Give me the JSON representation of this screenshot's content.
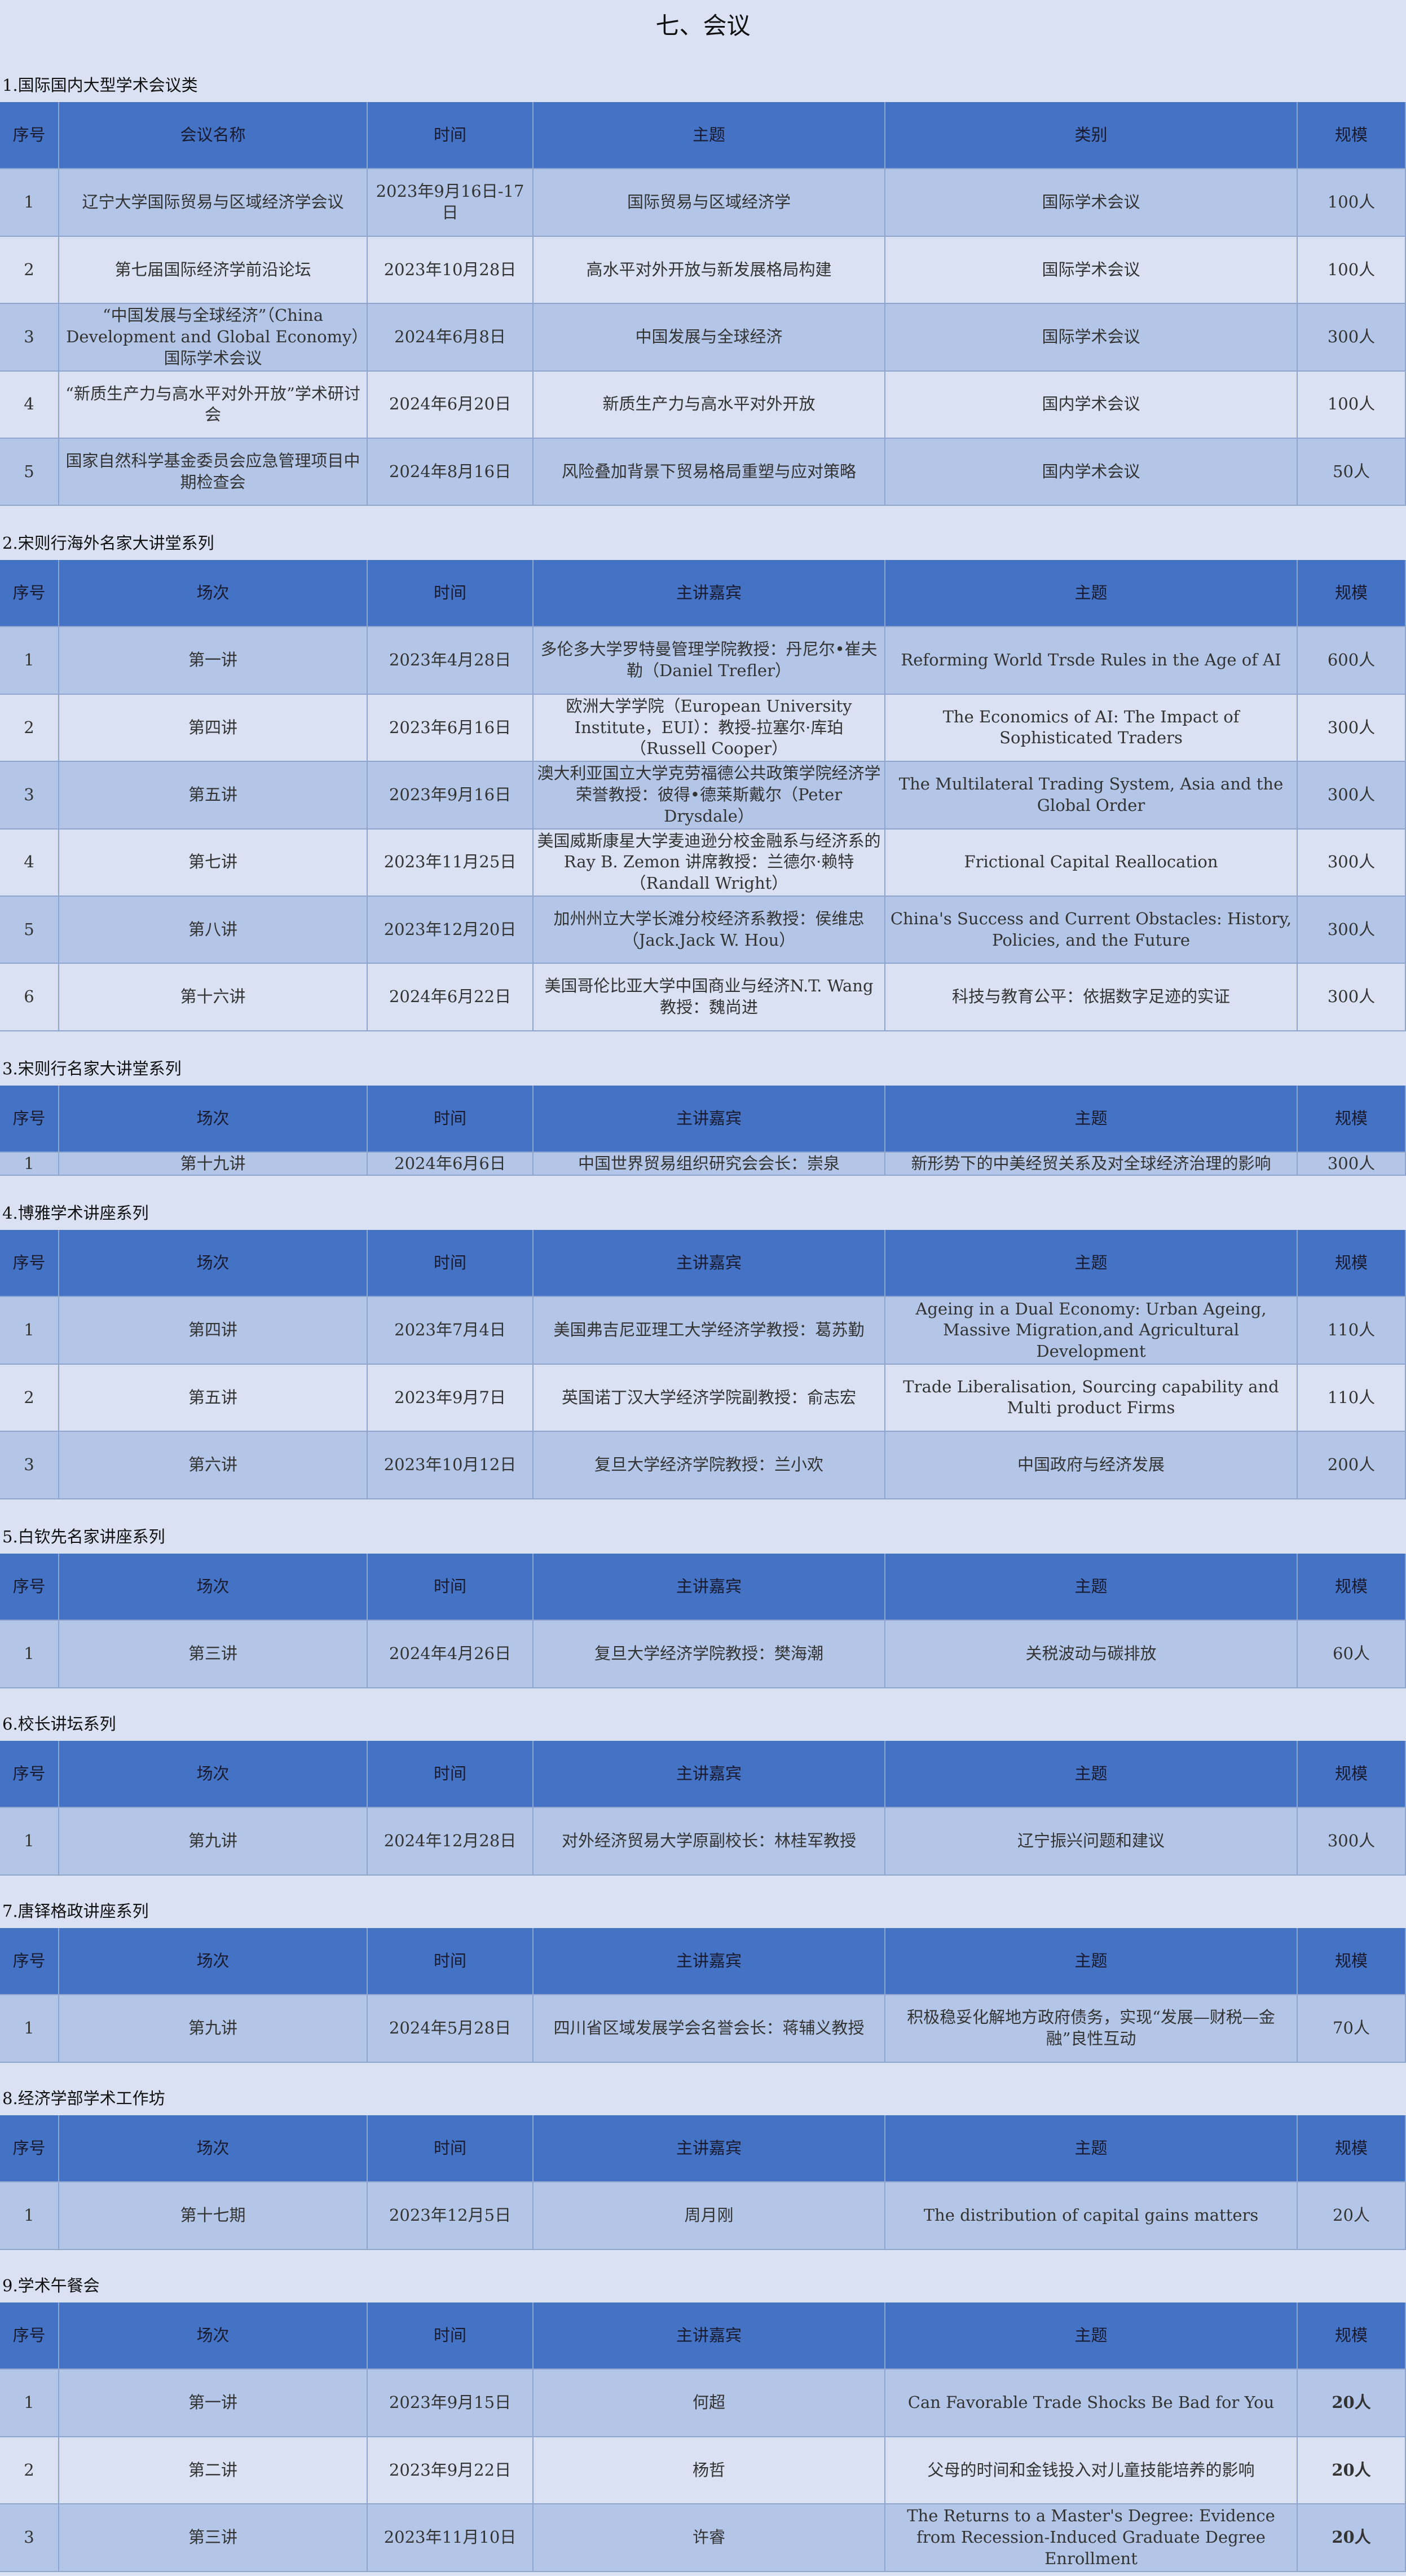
{
  "title": "七、会议",
  "sections": [
    {
      "title": "1.国际国内大型学术会议类",
      "headers": [
        "序号",
        "会议名称",
        "时间",
        "主题",
        "类别",
        "规模"
      ],
      "rows": [
        [
          "1",
          "辽宁大学国际贸易与区域经济学会议",
          "2023年9月16日-17日",
          "国际贸易与区域经济学",
          "国际学术会议",
          "100人"
        ],
        [
          "2",
          "第七届国际经济学前沿论坛",
          "2023年10月28日",
          "高水平对外开放与新发展格局构建",
          "国际学术会议",
          "100人"
        ],
        [
          "3",
          "“中国发展与全球经济”（China Development and Global Economy）国际学术会议",
          "2024年6月8日",
          "中国发展与全球经济",
          "国际学术会议",
          "300人"
        ],
        [
          "4",
          "“新质生产力与高水平对外开放”学术研讨会",
          "2024年6月20日",
          "新质生产力与高水平对外开放",
          "国内学术会议",
          "100人"
        ],
        [
          "5",
          "国家自然科学基金委员会应急管理项目中期检查会",
          "2024年8月16日",
          "风险叠加背景下贸易格局重塑与应对策略",
          "国内学术会议",
          "50人"
        ]
      ]
    },
    {
      "title": "2.宋则行海外名家大讲堂系列",
      "headers": [
        "序号",
        "场次",
        "时间",
        "主讲嘉宾",
        "主题",
        "规模"
      ],
      "rows": [
        [
          "1",
          "第一讲",
          "2023年4月28日",
          "多伦多大学罗特曼管理学院教授：丹尼尔•崔夫勒（Daniel Trefler）",
          "Reforming World Trsde Rules in the Age of AI",
          "600人"
        ],
        [
          "2",
          "第四讲",
          "2023年6月16日",
          "欧洲大学学院（European University Institute，EUI）：教授-拉塞尔·库珀（Russell Cooper）",
          "The Economics of AI: The Impact of Sophisticated Traders",
          "300人"
        ],
        [
          "3",
          "第五讲",
          "2023年9月16日",
          "澳大利亚国立大学克劳福德公共政策学院经济学荣誉教授：彼得•德莱斯戴尔（Peter Drysdale）",
          "The Multilateral Trading System, Asia and the Global Order",
          "300人"
        ],
        [
          "4",
          "第七讲",
          "2023年11月25日",
          "美国威斯康星大学麦迪逊分校金融系与经济系的Ray B. Zemon 讲席教授：兰德尔·赖特（Randall Wright）",
          "Frictional Capital Reallocation",
          "300人"
        ],
        [
          "5",
          "第八讲",
          "2023年12月20日",
          "加州州立大学长滩分校经济系教授：侯维忠（Jack.Jack W. Hou）",
          "China's Success and Current Obstacles: History, Policies, and the Future",
          "300人"
        ],
        [
          "6",
          "第十六讲",
          "2024年6月22日",
          "美国哥伦比亚大学中国商业与经济N.T. Wang教授：魏尚进",
          "科技与教育公平：依据数字足迹的实证",
          "300人"
        ]
      ]
    },
    {
      "title": "3.宋则行名家大讲堂系列",
      "headers": [
        "序号",
        "场次",
        "时间",
        "主讲嘉宾",
        "主题",
        "规模"
      ],
      "rows": [
        [
          "1",
          "第十九讲",
          "2024年6月6日",
          "中国世界贸易组织研究会会长：崇泉",
          "新形势下的中美经贸关系及对全球经济治理的影响",
          "300人"
        ]
      ]
    },
    {
      "title": "4.博雅学术讲座系列",
      "headers": [
        "序号",
        "场次",
        "时间",
        "主讲嘉宾",
        "主题",
        "规模"
      ],
      "rows": [
        [
          "1",
          "第四讲",
          "2023年7月4日",
          "美国弗吉尼亚理工大学经济学教授：葛苏勤",
          "Ageing in a Dual Economy: Urban Ageing, Massive Migration,and Agricultural Development",
          "110人"
        ],
        [
          "2",
          "第五讲",
          "2023年9月7日",
          "英国诺丁汉大学经济学院副教授：俞志宏",
          "Trade Liberalisation, Sourcing capability and Multi product Firms",
          "110人"
        ],
        [
          "3",
          "第六讲",
          "2023年10月12日",
          "复旦大学经济学院教授：兰小欢",
          "中国政府与经济发展",
          "200人"
        ]
      ]
    },
    {
      "title": "5.白钦先名家讲座系列",
      "headers": [
        "序号",
        "场次",
        "时间",
        "主讲嘉宾",
        "主题",
        "规模"
      ],
      "rows": [
        [
          "1",
          "第三讲",
          "2024年4月26日",
          "复旦大学经济学院教授：樊海潮",
          "关税波动与碳排放",
          "60人"
        ]
      ]
    },
    {
      "title": "6.校长讲坛系列",
      "headers": [
        "序号",
        "场次",
        "时间",
        "主讲嘉宾",
        "主题",
        "规模"
      ],
      "rows": [
        [
          "1",
          "第九讲",
          "2024年12月28日",
          "对外经济贸易大学原副校长：林桂军教授",
          "辽宁振兴问题和建议",
          "300人"
        ]
      ]
    },
    {
      "title": "7.唐铎格政讲座系列",
      "headers": [
        "序号",
        "场次",
        "时间",
        "主讲嘉宾",
        "主题",
        "规模"
      ],
      "rows": [
        [
          "1",
          "第九讲",
          "2024年5月28日",
          "四川省区域发展学会名誉会长：蒋辅义教授",
          "积极稳妥化解地方政府债务，实现“发展—财税—金融”良性互动",
          "70人"
        ]
      ]
    },
    {
      "title": "8.经济学部学术工作坊",
      "headers": [
        "序号",
        "场次",
        "时间",
        "主讲嘉宾",
        "主题",
        "规模"
      ],
      "rows": [
        [
          "1",
          "第十七期",
          "2023年12月5日",
          "周月刚",
          "The distribution of capital gains matters",
          "20人"
        ]
      ]
    },
    {
      "title": "9.学术午餐会",
      "headers": [
        "序号",
        "场次",
        "时间",
        "主讲嘉宾",
        "主题",
        "规模"
      ],
      "rows": [
        [
          "1",
          "第一讲",
          "2023年9月15日",
          "何超",
          "Can Favorable Trade Shocks Be Bad for You",
          "20人"
        ],
        [
          "2",
          "第二讲",
          "2023年9月22日",
          "杨哲",
          "父母的时间和金钱投入对儿童技能培养的影响",
          "20人"
        ],
        [
          "3",
          "第三讲",
          "2023年11月10日",
          "许睿",
          "The Returns to a Master's Degree: Evidence from Recession-Induced Graduate Degree Enrollment",
          "20人"
        ]
      ]
    }
  ]
}
